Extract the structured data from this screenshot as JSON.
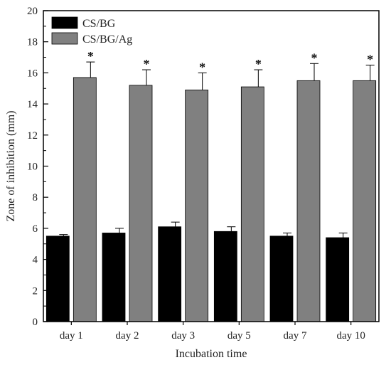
{
  "chart_data": {
    "type": "bar",
    "categories": [
      "day 1",
      "day 2",
      "day 3",
      "day 5",
      "day 7",
      "day 10"
    ],
    "series": [
      {
        "name": "CS/BG",
        "values": [
          5.5,
          5.7,
          6.1,
          5.8,
          5.5,
          5.4
        ],
        "errors": [
          0.1,
          0.3,
          0.3,
          0.3,
          0.2,
          0.3
        ],
        "color": "#000000"
      },
      {
        "name": "CS/BG/Ag",
        "values": [
          15.7,
          15.2,
          14.9,
          15.1,
          15.5,
          15.5
        ],
        "errors": [
          1.0,
          1.0,
          1.1,
          1.1,
          1.1,
          1.0
        ],
        "color": "#808080"
      }
    ],
    "significance_marker": "*",
    "xlabel": "Incubation time",
    "ylabel": "Zone of inhibition (mm)",
    "ylim": [
      0,
      20
    ],
    "yticks": [
      0,
      2,
      4,
      6,
      8,
      10,
      12,
      14,
      16,
      18,
      20
    ],
    "grid": false,
    "legend": "top-left"
  }
}
